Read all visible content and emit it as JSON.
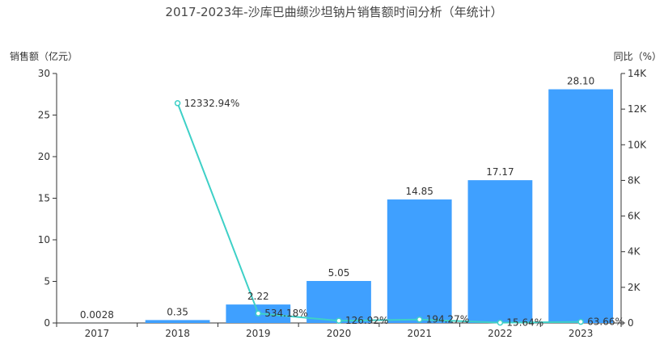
{
  "chart_data": {
    "type": "bar",
    "title": "2017-2023年-沙库巴曲缬沙坦钠片销售额时间分析（年统计）",
    "ylabel_left": "销售额（亿元）",
    "ylabel_right": "同比（%）",
    "categories": [
      "2017",
      "2018",
      "2019",
      "2020",
      "2021",
      "2022",
      "2023"
    ],
    "series": [
      {
        "type": "bar",
        "axis": "left",
        "color": "#3fa0ff",
        "values": [
          0.0028,
          0.35,
          2.22,
          5.05,
          14.85,
          17.17,
          28.1
        ],
        "labels": [
          "0.0028",
          "0.35",
          "2.22",
          "5.05",
          "14.85",
          "17.17",
          "28.10"
        ]
      },
      {
        "type": "line",
        "axis": "right",
        "color": "#3ed0c7",
        "values": [
          null,
          12332.94,
          534.18,
          126.92,
          194.27,
          15.64,
          63.66
        ],
        "labels": [
          "",
          "12332.94%",
          "534.18%",
          "126.92%",
          "194.27%",
          "15.64%",
          "63.66%"
        ]
      }
    ],
    "ylim_left": [
      0,
      30
    ],
    "yticks_left": [
      0,
      5,
      10,
      15,
      20,
      25,
      30
    ],
    "ytick_labels_left": [
      "0",
      "5",
      "10",
      "15",
      "20",
      "25",
      "30"
    ],
    "ylim_right": [
      0,
      14000
    ],
    "yticks_right": [
      0,
      2000,
      4000,
      6000,
      8000,
      10000,
      12000,
      14000
    ],
    "ytick_labels_right": [
      "0",
      "2K",
      "4K",
      "6K",
      "8K",
      "10K",
      "12K",
      "14K"
    ],
    "grid": false,
    "legend": "none",
    "colors": {
      "axis": "#333333",
      "text": "#333333",
      "title": "#464646"
    }
  }
}
